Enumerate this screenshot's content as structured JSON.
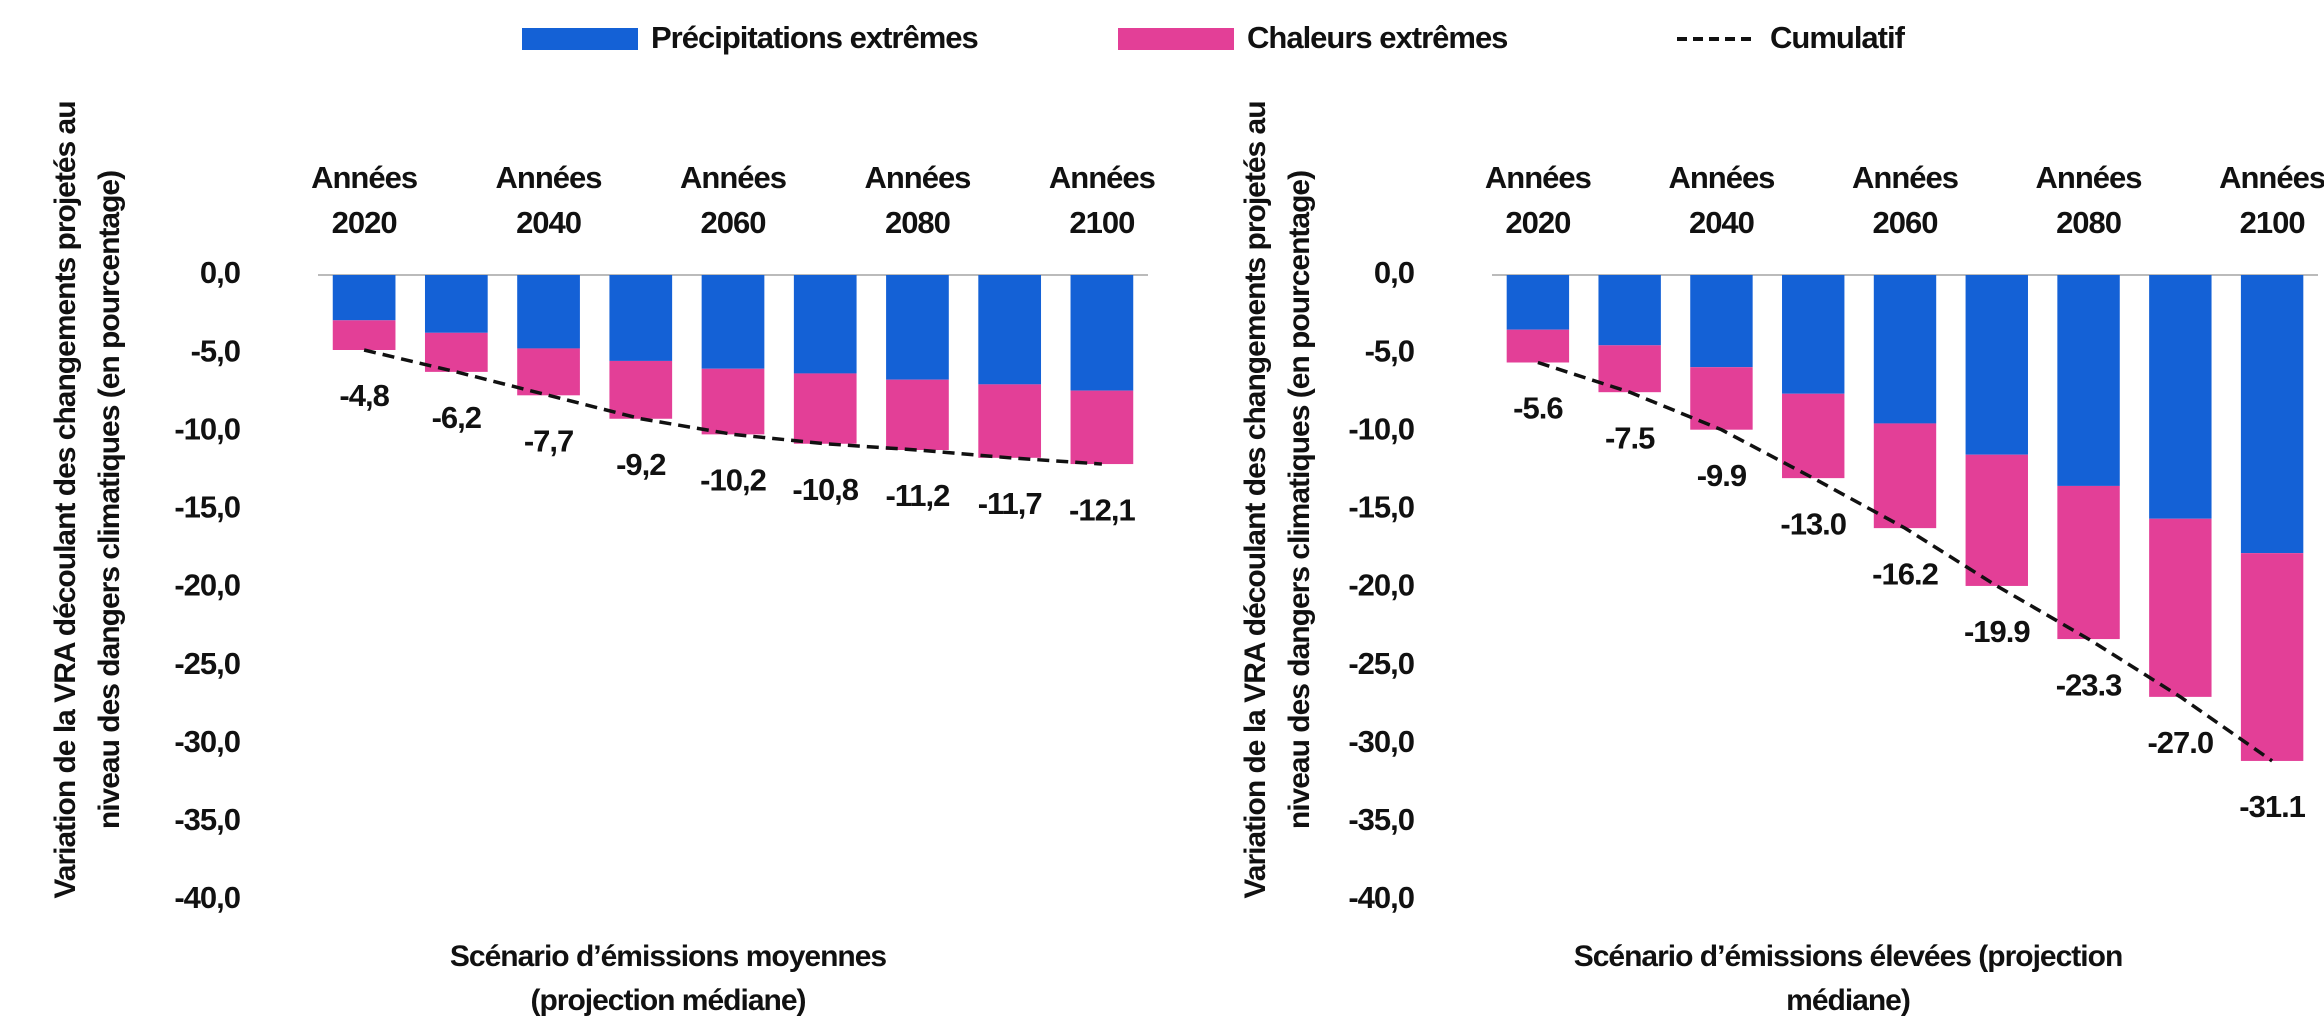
{
  "chart_data": [
    {
      "type": "bar",
      "stacked": true,
      "ylabel": "Variation de la VRA découlant des changements projetés au niveau des dangers climatiques (en pourcentage)",
      "xlabel": "Scénario d’émissions moyennes (projection médiane)",
      "categories": [
        "Années 2020",
        null,
        "Années 2040",
        null,
        "Années 2060",
        null,
        "Années 2080",
        null,
        "Années 2100"
      ],
      "series": [
        {
          "name": "Précipitations extrêmes",
          "type": "bar",
          "color": "#1461d6",
          "values": [
            -2.9,
            -3.7,
            -4.7,
            -5.5,
            -6.0,
            -6.3,
            -6.7,
            -7.0,
            -7.4
          ]
        },
        {
          "name": "Chaleurs extrêmes",
          "type": "bar",
          "color": "#e33f97",
          "values": [
            -1.9,
            -2.5,
            -3.0,
            -3.7,
            -4.2,
            -4.5,
            -4.5,
            -4.7,
            -4.7
          ]
        },
        {
          "name": "Cumulatif",
          "type": "line",
          "color": "#111111",
          "dashed": true,
          "values": [
            -4.8,
            -6.2,
            -7.7,
            -9.2,
            -10.2,
            -10.8,
            -11.2,
            -11.7,
            -12.1
          ],
          "value_labels": [
            "-4,8",
            "-6,2",
            "-7,7",
            "-9,2",
            "-10,2",
            "-10,8",
            "-11,2",
            "-11,7",
            "-12,1"
          ]
        }
      ],
      "ylim": [
        -40,
        0
      ],
      "yticks": [
        {
          "value": 0,
          "label": "0,0"
        },
        {
          "value": -5,
          "label": "-5,0"
        },
        {
          "value": -10,
          "label": "-10,0"
        },
        {
          "value": -15,
          "label": "-15,0"
        },
        {
          "value": -20,
          "label": "-20,0"
        },
        {
          "value": -25,
          "label": "-25,0"
        },
        {
          "value": -30,
          "label": "-30,0"
        },
        {
          "value": -35,
          "label": "-35,0"
        },
        {
          "value": -40,
          "label": "-40,0"
        }
      ],
      "grid": false
    },
    {
      "type": "bar",
      "stacked": true,
      "ylabel": "Variation de la VRA découlant des changements projetés au niveau des dangers climatiques (en pourcentage)",
      "xlabel": "Scénario d’émissions élevées (projection médiane)",
      "categories": [
        "Années 2020",
        null,
        "Années 2040",
        null,
        "Années 2060",
        null,
        "Années 2080",
        null,
        "Années 2100"
      ],
      "series": [
        {
          "type": "bar",
          "color": "#1461d6",
          "values": [
            -3.5,
            -4.5,
            -5.9,
            -7.6,
            -9.5,
            -11.5,
            -13.5,
            -15.6,
            -17.8
          ]
        },
        {
          "type": "bar",
          "color": "#e33f97",
          "values": [
            -2.1,
            -3.0,
            -4.0,
            -5.4,
            -6.7,
            -8.4,
            -9.8,
            -11.4,
            -13.3
          ]
        },
        {
          "type": "line",
          "color": "#111111",
          "dashed": true,
          "values": [
            -5.6,
            -7.5,
            -9.9,
            -13.0,
            -16.2,
            -19.9,
            -23.3,
            -27.0,
            -31.1
          ],
          "value_labels": [
            "-5.6",
            "-7.5",
            "-9.9",
            "-13.0",
            "-16.2",
            "-19.9",
            "-23.3",
            "-27.0",
            "-31.1"
          ]
        }
      ],
      "ylim": [
        -40,
        0
      ],
      "yticks": [
        {
          "value": 0,
          "label": "0,0"
        },
        {
          "value": -5,
          "label": "-5,0"
        },
        {
          "value": -10,
          "label": "-10,0"
        },
        {
          "value": -15,
          "label": "-15,0"
        },
        {
          "value": -20,
          "label": "-20,0"
        },
        {
          "value": -25,
          "label": "-25,0"
        },
        {
          "value": -30,
          "label": "-30,0"
        },
        {
          "value": -35,
          "label": "-35,0"
        },
        {
          "value": -40,
          "label": "-40,0"
        }
      ],
      "grid": false
    }
  ]
}
